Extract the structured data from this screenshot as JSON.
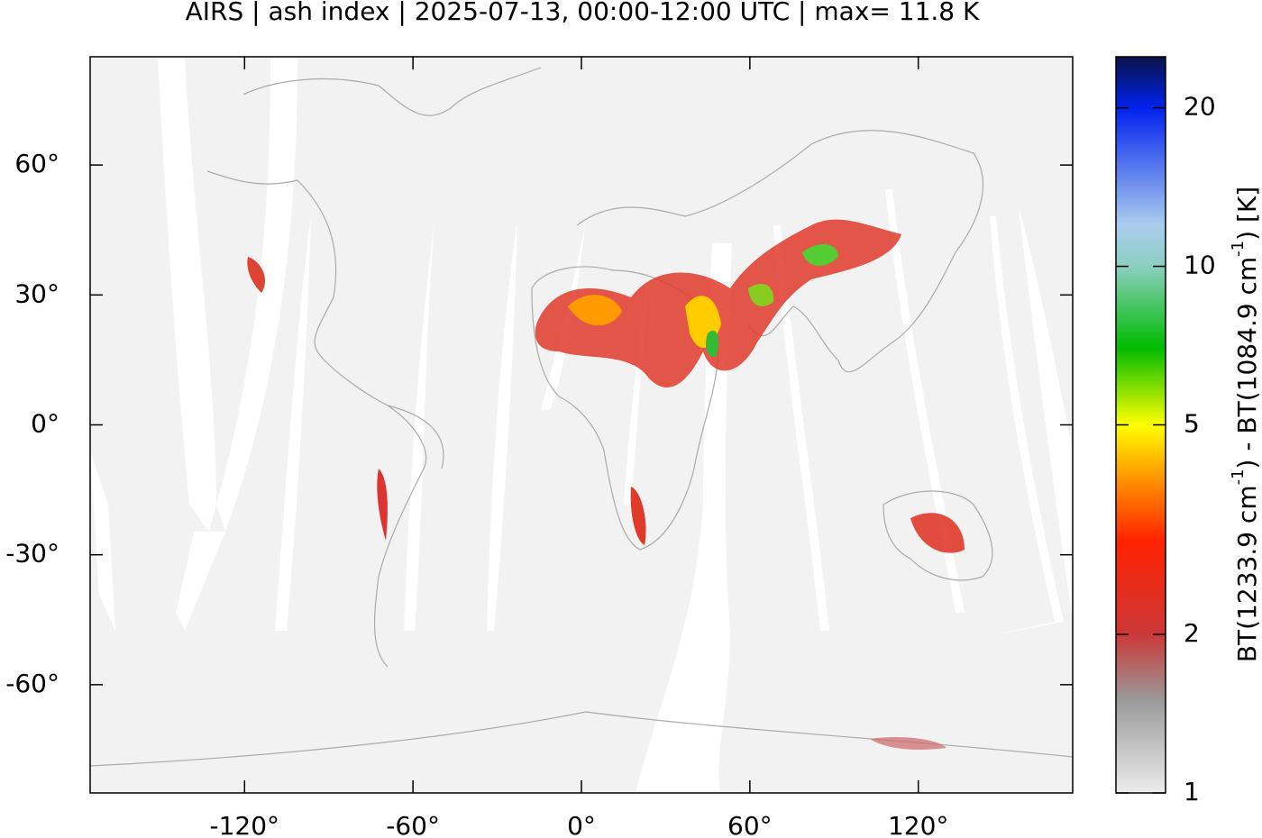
{
  "chart_data": {
    "type": "map",
    "title": "AIRS | ash index | 2025-07-13, 00:00-12:00 UTC | max= 11.8 K",
    "xlim": [
      -175,
      175
    ],
    "ylim": [
      -85,
      85
    ],
    "xticks": [
      {
        "value": -120,
        "label": "-120°"
      },
      {
        "value": -60,
        "label": "-60°"
      },
      {
        "value": 0,
        "label": "0°"
      },
      {
        "value": 60,
        "label": "60°"
      },
      {
        "value": 120,
        "label": "120°"
      }
    ],
    "yticks": [
      {
        "value": 60,
        "label": "60°"
      },
      {
        "value": 30,
        "label": "30°"
      },
      {
        "value": 0,
        "label": "0°"
      },
      {
        "value": -30,
        "label": "-30°"
      },
      {
        "value": -60,
        "label": "-60°"
      }
    ],
    "colorbar": {
      "label": [
        "BT(1233.9 cm",
        "-1",
        ") - BT(1084.9 cm",
        "-1",
        ") [K]"
      ],
      "clim": [
        1,
        25
      ],
      "log": true,
      "ticks": [
        1,
        2,
        5,
        10,
        20
      ],
      "colors": [
        {
          "value": 1,
          "color": "#ececec"
        },
        {
          "value": 1.5,
          "color": "#9a9a9a"
        },
        {
          "value": 2,
          "color": "#cc3838"
        },
        {
          "value": 3,
          "color": "#ff2200"
        },
        {
          "value": 4,
          "color": "#ff9900"
        },
        {
          "value": 5,
          "color": "#ffff00"
        },
        {
          "value": 7,
          "color": "#00bb00"
        },
        {
          "value": 10,
          "color": "#8ccfc0"
        },
        {
          "value": 12,
          "color": "#aaccee"
        },
        {
          "value": 20,
          "color": "#0022ee"
        },
        {
          "value": 25,
          "color": "#0a1248"
        }
      ]
    }
  }
}
